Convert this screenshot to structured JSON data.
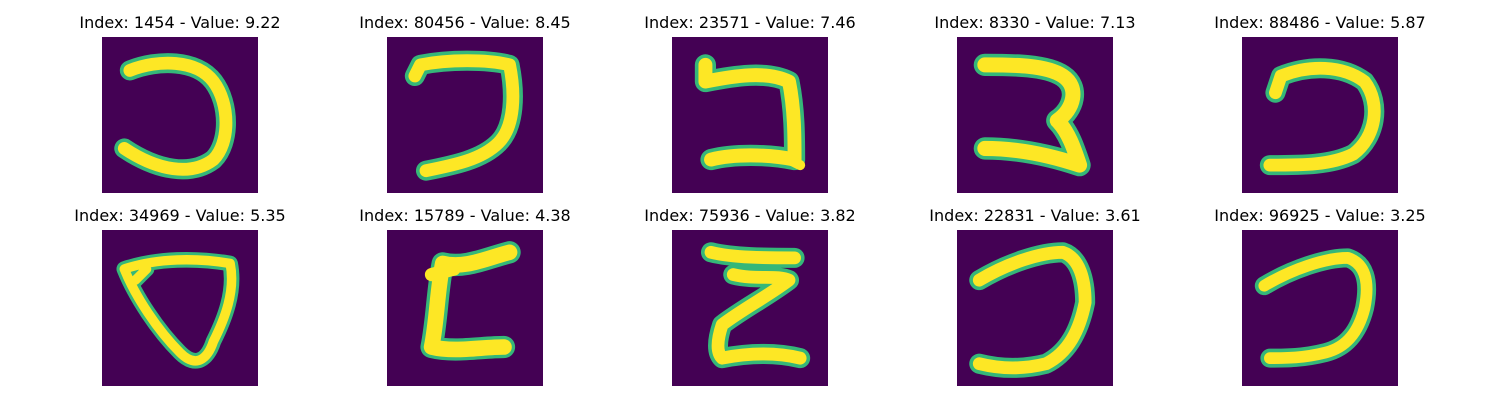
{
  "colors": {
    "background": "#440154",
    "stroke": "#fde725",
    "edge": "#35b779"
  },
  "panels": [
    {
      "title": "Index: 1454 - Value: 9.22",
      "glyph": "glyph-1454"
    },
    {
      "title": "Index: 80456 - Value: 8.45",
      "glyph": "glyph-80456"
    },
    {
      "title": "Index: 23571 - Value: 7.46",
      "glyph": "glyph-23571"
    },
    {
      "title": "Index: 8330 - Value: 7.13",
      "glyph": "glyph-8330"
    },
    {
      "title": "Index: 88486 - Value: 5.87",
      "glyph": "glyph-88486"
    },
    {
      "title": "Index: 34969 - Value: 5.35",
      "glyph": "glyph-34969"
    },
    {
      "title": "Index: 15789 - Value: 4.38",
      "glyph": "glyph-15789"
    },
    {
      "title": "Index: 75936 - Value: 3.82",
      "glyph": "glyph-75936"
    },
    {
      "title": "Index: 22831 - Value: 3.61",
      "glyph": "glyph-22831"
    },
    {
      "title": "Index: 96925 - Value: 3.25",
      "glyph": "glyph-96925"
    }
  ]
}
